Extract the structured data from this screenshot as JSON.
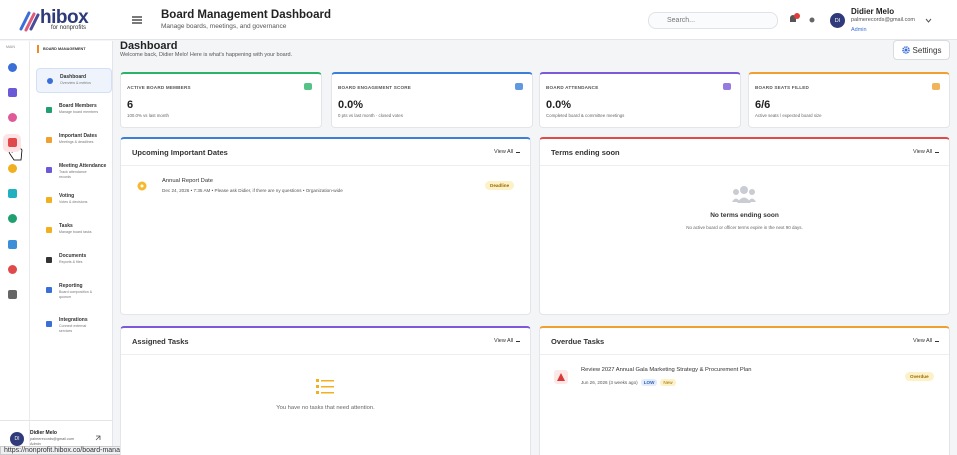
{
  "logo": {
    "name": "hibox",
    "tagline": "for nonprofits"
  },
  "header": {
    "title": "Board Management Dashboard",
    "subtitle": "Manage boards, meetings, and governance",
    "search_placeholder": "Search...",
    "user": {
      "initials": "DI",
      "name": "Didier Melo",
      "email": "palmerecords@gmail.com",
      "role": "Admin"
    }
  },
  "sidebar": {
    "section": "MAIN",
    "group": "BOARD MANAGEMENT",
    "items": [
      {
        "title": "Dashboard",
        "subtitle": "Overview & metrics"
      },
      {
        "title": "Board Members",
        "subtitle": "Manage board members"
      },
      {
        "title": "Important Dates",
        "subtitle": "Meetings & deadlines"
      },
      {
        "title": "Meeting Attendance",
        "subtitle": "Track attendance records"
      },
      {
        "title": "Voting",
        "subtitle": "Votes & decisions"
      },
      {
        "title": "Tasks",
        "subtitle": "Manage board tasks"
      },
      {
        "title": "Documents",
        "subtitle": "Reports & files"
      },
      {
        "title": "Reporting",
        "subtitle": "Board composition & quorum"
      },
      {
        "title": "Integrations",
        "subtitle": "Connect external services"
      }
    ],
    "user": {
      "initials": "DI",
      "name": "Didier Melo",
      "email": "palmerecords@gmail.com",
      "role": "Admin"
    }
  },
  "status_url": "https://nonprofit.hibox.co/board-management",
  "page": {
    "title": "Dashboard",
    "welcome": "Welcome back, Didier Melo! Here is what's happening with your board.",
    "settings": "Settings"
  },
  "stats": [
    {
      "label": "ACTIVE BOARD MEMBERS",
      "value": "6",
      "note": "100.0% vs last month"
    },
    {
      "label": "BOARD ENGAGEMENT SCORE",
      "value": "0.0%",
      "note": "0 pts vs last month · closed votes"
    },
    {
      "label": "BOARD ATTENDANCE",
      "value": "0.0%",
      "note": "Completed board & committee meetings"
    },
    {
      "label": "BOARD SEATS FILLED",
      "value": "6/6",
      "note": "Active seats / expected board size"
    }
  ],
  "panels": {
    "upcoming": {
      "title": "Upcoming Important Dates",
      "view_all": "View All",
      "item": {
        "title": "Annual Report Date",
        "detail": "Dec 24, 2026 • 7:35 AM • Please ask Didier, if there are ny questions • Organization-wide",
        "badge": "Deadline"
      }
    },
    "terms": {
      "title": "Terms ending soon",
      "view_all": "View All",
      "empty_title": "No terms ending soon",
      "empty_text": "No active board or officer terms expire in the next 90 days."
    },
    "assigned": {
      "title": "Assigned Tasks",
      "view_all": "View All",
      "empty_text": "You have no tasks that need attention."
    },
    "overdue": {
      "title": "Overdue Tasks",
      "view_all": "View All",
      "item": {
        "title": "Review 2027 Annual Gala Marketing Strategy & Procurement Plan",
        "date": "Jun 26, 2026 (3 weeks ago)",
        "priority": "LOW",
        "status": "New",
        "badge": "Overdue"
      }
    }
  }
}
